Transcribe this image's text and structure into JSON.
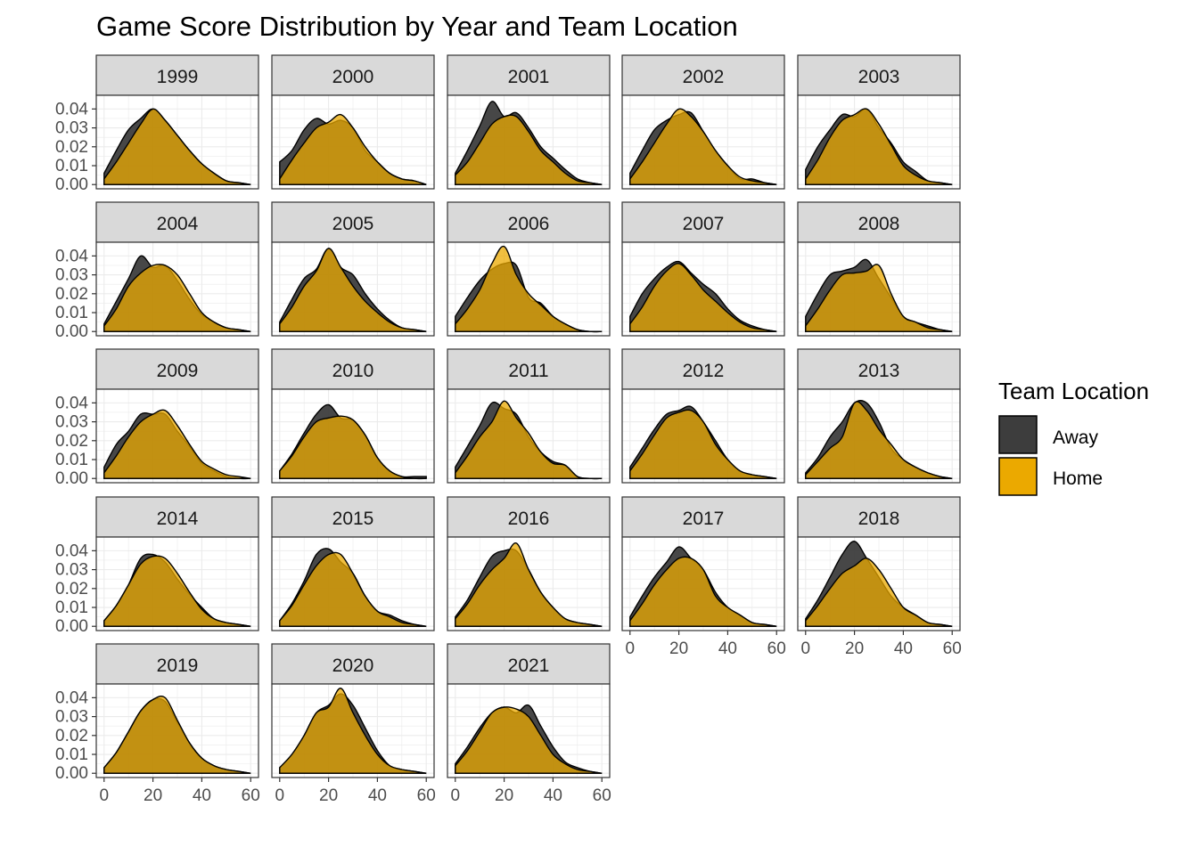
{
  "chart_data": {
    "type": "area",
    "title": "Game Score Distribution by Year and Team Location",
    "xlabel": "",
    "ylabel": "",
    "xlim": [
      0,
      60
    ],
    "ylim": [
      0,
      0.045
    ],
    "x_ticks": [
      "0",
      "20",
      "40",
      "60"
    ],
    "y_ticks": [
      "0.00",
      "0.01",
      "0.02",
      "0.03",
      "0.04"
    ],
    "grid": true,
    "legend": {
      "title": "Team Location",
      "position": "right",
      "entries": [
        {
          "name": "Away",
          "color": "#3d3d3d"
        },
        {
          "name": "Home",
          "color": "#eba900"
        }
      ]
    },
    "x_points": [
      0,
      5,
      10,
      15,
      20,
      25,
      30,
      35,
      40,
      45,
      50,
      55,
      60
    ],
    "panels": [
      {
        "year": "1999",
        "away": [
          0.006,
          0.018,
          0.029,
          0.035,
          0.04,
          0.034,
          0.026,
          0.018,
          0.011,
          0.006,
          0.002,
          0.001,
          0.0
        ],
        "home": [
          0.003,
          0.012,
          0.022,
          0.032,
          0.04,
          0.034,
          0.026,
          0.018,
          0.011,
          0.006,
          0.002,
          0.001,
          0.0
        ]
      },
      {
        "year": "2000",
        "away": [
          0.012,
          0.018,
          0.029,
          0.035,
          0.032,
          0.034,
          0.03,
          0.018,
          0.012,
          0.006,
          0.003,
          0.002,
          0.0
        ],
        "home": [
          0.003,
          0.013,
          0.022,
          0.03,
          0.033,
          0.037,
          0.03,
          0.02,
          0.012,
          0.006,
          0.003,
          0.002,
          0.0
        ]
      },
      {
        "year": "2001",
        "away": [
          0.006,
          0.018,
          0.031,
          0.044,
          0.036,
          0.038,
          0.03,
          0.02,
          0.014,
          0.008,
          0.003,
          0.001,
          0.0
        ],
        "home": [
          0.005,
          0.012,
          0.022,
          0.032,
          0.036,
          0.036,
          0.028,
          0.018,
          0.012,
          0.006,
          0.002,
          0.001,
          0.0
        ]
      },
      {
        "year": "2002",
        "away": [
          0.006,
          0.018,
          0.029,
          0.034,
          0.037,
          0.038,
          0.028,
          0.018,
          0.01,
          0.003,
          0.003,
          0.001,
          0.0
        ],
        "home": [
          0.003,
          0.012,
          0.022,
          0.032,
          0.04,
          0.036,
          0.028,
          0.018,
          0.01,
          0.004,
          0.002,
          0.001,
          0.0
        ]
      },
      {
        "year": "2003",
        "away": [
          0.008,
          0.02,
          0.029,
          0.037,
          0.036,
          0.04,
          0.03,
          0.022,
          0.012,
          0.007,
          0.002,
          0.001,
          0.0
        ],
        "home": [
          0.003,
          0.013,
          0.025,
          0.034,
          0.037,
          0.04,
          0.032,
          0.021,
          0.01,
          0.005,
          0.002,
          0.001,
          0.0
        ]
      },
      {
        "year": "2004",
        "away": [
          0.004,
          0.016,
          0.028,
          0.04,
          0.034,
          0.035,
          0.027,
          0.017,
          0.009,
          0.005,
          0.002,
          0.001,
          0.0
        ],
        "home": [
          0.003,
          0.012,
          0.024,
          0.031,
          0.035,
          0.035,
          0.03,
          0.02,
          0.01,
          0.005,
          0.002,
          0.001,
          0.0
        ]
      },
      {
        "year": "2005",
        "away": [
          0.005,
          0.017,
          0.028,
          0.033,
          0.044,
          0.034,
          0.03,
          0.02,
          0.012,
          0.006,
          0.002,
          0.001,
          0.0
        ],
        "home": [
          0.004,
          0.013,
          0.024,
          0.032,
          0.044,
          0.034,
          0.024,
          0.016,
          0.01,
          0.005,
          0.002,
          0.001,
          0.0
        ]
      },
      {
        "year": "2006",
        "away": [
          0.008,
          0.018,
          0.027,
          0.033,
          0.036,
          0.035,
          0.018,
          0.015,
          0.008,
          0.004,
          0.001,
          0.0,
          0.0
        ],
        "home": [
          0.004,
          0.012,
          0.022,
          0.036,
          0.045,
          0.03,
          0.02,
          0.014,
          0.008,
          0.004,
          0.001,
          0.0,
          0.0
        ]
      },
      {
        "year": "2007",
        "away": [
          0.008,
          0.02,
          0.028,
          0.034,
          0.037,
          0.031,
          0.025,
          0.02,
          0.012,
          0.006,
          0.003,
          0.001,
          0.0
        ],
        "home": [
          0.004,
          0.013,
          0.024,
          0.032,
          0.036,
          0.03,
          0.022,
          0.016,
          0.01,
          0.005,
          0.002,
          0.001,
          0.0
        ]
      },
      {
        "year": "2008",
        "away": [
          0.008,
          0.02,
          0.03,
          0.032,
          0.034,
          0.038,
          0.028,
          0.018,
          0.008,
          0.005,
          0.003,
          0.001,
          0.0
        ],
        "home": [
          0.003,
          0.012,
          0.022,
          0.03,
          0.031,
          0.032,
          0.035,
          0.02,
          0.008,
          0.005,
          0.002,
          0.001,
          0.0
        ]
      },
      {
        "year": "2009",
        "away": [
          0.006,
          0.018,
          0.025,
          0.034,
          0.034,
          0.034,
          0.025,
          0.017,
          0.008,
          0.004,
          0.001,
          0.0,
          0.0
        ],
        "home": [
          0.003,
          0.012,
          0.022,
          0.03,
          0.034,
          0.036,
          0.028,
          0.018,
          0.009,
          0.005,
          0.002,
          0.001,
          0.0
        ]
      },
      {
        "year": "2010",
        "away": [
          0.004,
          0.013,
          0.024,
          0.034,
          0.039,
          0.032,
          0.031,
          0.023,
          0.011,
          0.004,
          0.001,
          0.001,
          0.001
        ],
        "home": [
          0.004,
          0.012,
          0.022,
          0.03,
          0.032,
          0.033,
          0.031,
          0.023,
          0.011,
          0.004,
          0.001,
          0.0,
          0.0
        ]
      },
      {
        "year": "2011",
        "away": [
          0.006,
          0.017,
          0.028,
          0.04,
          0.037,
          0.034,
          0.022,
          0.014,
          0.009,
          0.007,
          0.001,
          0.0,
          0.0
        ],
        "home": [
          0.003,
          0.012,
          0.022,
          0.03,
          0.041,
          0.032,
          0.024,
          0.014,
          0.008,
          0.007,
          0.001,
          0.0,
          0.0
        ]
      },
      {
        "year": "2012",
        "away": [
          0.006,
          0.016,
          0.026,
          0.034,
          0.036,
          0.038,
          0.03,
          0.02,
          0.01,
          0.004,
          0.002,
          0.001,
          0.0
        ],
        "home": [
          0.004,
          0.013,
          0.023,
          0.032,
          0.035,
          0.036,
          0.03,
          0.018,
          0.01,
          0.004,
          0.002,
          0.001,
          0.0
        ]
      },
      {
        "year": "2013",
        "away": [
          0.003,
          0.011,
          0.022,
          0.03,
          0.04,
          0.04,
          0.03,
          0.016,
          0.01,
          0.006,
          0.003,
          0.001,
          0.0
        ],
        "home": [
          0.002,
          0.009,
          0.016,
          0.022,
          0.04,
          0.036,
          0.026,
          0.018,
          0.01,
          0.006,
          0.003,
          0.001,
          0.0
        ]
      },
      {
        "year": "2014",
        "away": [
          0.003,
          0.011,
          0.022,
          0.036,
          0.038,
          0.034,
          0.025,
          0.017,
          0.01,
          0.004,
          0.002,
          0.001,
          0.0
        ],
        "home": [
          0.003,
          0.011,
          0.022,
          0.033,
          0.037,
          0.036,
          0.028,
          0.018,
          0.009,
          0.004,
          0.002,
          0.001,
          0.0
        ]
      },
      {
        "year": "2015",
        "away": [
          0.003,
          0.012,
          0.024,
          0.038,
          0.041,
          0.034,
          0.028,
          0.016,
          0.008,
          0.006,
          0.003,
          0.001,
          0.0
        ],
        "home": [
          0.003,
          0.011,
          0.022,
          0.032,
          0.038,
          0.038,
          0.028,
          0.016,
          0.008,
          0.005,
          0.002,
          0.001,
          0.0
        ]
      },
      {
        "year": "2016",
        "away": [
          0.005,
          0.014,
          0.026,
          0.037,
          0.04,
          0.04,
          0.03,
          0.018,
          0.01,
          0.004,
          0.002,
          0.001,
          0.0
        ],
        "home": [
          0.004,
          0.012,
          0.022,
          0.03,
          0.036,
          0.044,
          0.03,
          0.018,
          0.01,
          0.004,
          0.002,
          0.001,
          0.0
        ]
      },
      {
        "year": "2017",
        "away": [
          0.005,
          0.016,
          0.026,
          0.034,
          0.042,
          0.036,
          0.03,
          0.018,
          0.01,
          0.006,
          0.002,
          0.001,
          0.0
        ],
        "home": [
          0.003,
          0.012,
          0.022,
          0.03,
          0.036,
          0.036,
          0.03,
          0.016,
          0.01,
          0.006,
          0.002,
          0.001,
          0.0
        ]
      },
      {
        "year": "2018",
        "away": [
          0.004,
          0.014,
          0.026,
          0.038,
          0.045,
          0.036,
          0.026,
          0.016,
          0.01,
          0.006,
          0.002,
          0.001,
          0.0
        ],
        "home": [
          0.003,
          0.011,
          0.02,
          0.028,
          0.032,
          0.036,
          0.03,
          0.02,
          0.01,
          0.006,
          0.002,
          0.001,
          0.0
        ]
      },
      {
        "year": "2019",
        "away": [
          0.003,
          0.011,
          0.022,
          0.033,
          0.039,
          0.038,
          0.027,
          0.016,
          0.008,
          0.004,
          0.002,
          0.001,
          0.0
        ],
        "home": [
          0.003,
          0.011,
          0.022,
          0.033,
          0.039,
          0.04,
          0.028,
          0.016,
          0.008,
          0.004,
          0.002,
          0.001,
          0.0
        ]
      },
      {
        "year": "2020",
        "away": [
          0.003,
          0.01,
          0.02,
          0.032,
          0.036,
          0.042,
          0.036,
          0.024,
          0.012,
          0.004,
          0.002,
          0.001,
          0.0
        ],
        "home": [
          0.003,
          0.01,
          0.02,
          0.032,
          0.035,
          0.045,
          0.032,
          0.02,
          0.01,
          0.004,
          0.002,
          0.001,
          0.0
        ]
      },
      {
        "year": "2021",
        "away": [
          0.005,
          0.014,
          0.024,
          0.032,
          0.035,
          0.032,
          0.036,
          0.025,
          0.014,
          0.006,
          0.003,
          0.001,
          0.0
        ],
        "home": [
          0.004,
          0.012,
          0.022,
          0.032,
          0.035,
          0.034,
          0.03,
          0.02,
          0.01,
          0.005,
          0.002,
          0.001,
          0.0
        ]
      }
    ]
  }
}
